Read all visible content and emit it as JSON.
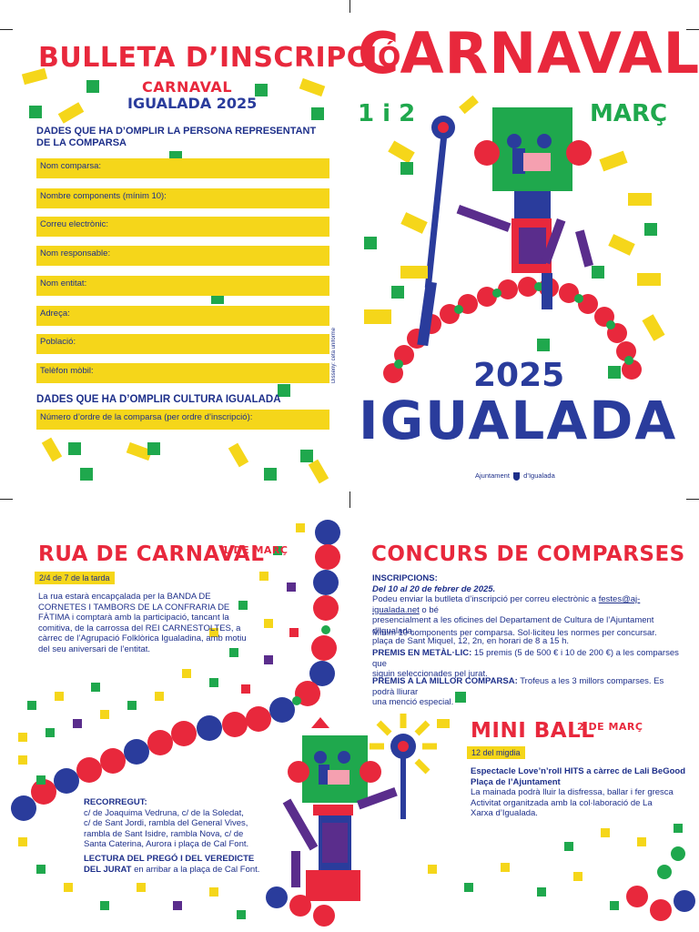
{
  "colors": {
    "red": "#e8283c",
    "blue": "#2a3c9c",
    "green": "#1fa84d",
    "yellow": "#f5d61a",
    "purple": "#5a2d8c"
  },
  "form": {
    "title": "BULLETA D’INSCRIPCIÓ",
    "event_line1": "CARNAVAL",
    "event_line2": "IGUALADA 2025",
    "section1": "DADES QUE HA D’OMPLIR LA PERSONA REPRESENTANT DE LA COMPARSA",
    "fields": [
      {
        "label": "Nom comparsa:",
        "note": ""
      },
      {
        "label": "Nombre components",
        "note": "(mínim 10):"
      },
      {
        "label": "Correu electrònic:",
        "note": ""
      },
      {
        "label": "Nom responsable:",
        "note": ""
      },
      {
        "label": "Nom entitat:",
        "note": ""
      },
      {
        "label": "Adreça:",
        "note": ""
      },
      {
        "label": "Població:",
        "note": ""
      },
      {
        "label": "Telèfon mòbil:",
        "note": ""
      }
    ],
    "section2": "DADES QUE HA D’OMPLIR CULTURA IGUALADA",
    "order_label": "Número d’ordre de la comparsa",
    "order_note": "(per ordre d’inscripció):",
    "credit": "Disseny: ceta uniforme"
  },
  "poster": {
    "title": "CARNAVAL",
    "dates_left": "1 i 2",
    "dates_right": "MARÇ",
    "year": "2025",
    "city": "IGUALADA",
    "footer_left": "Ajuntament",
    "footer_right": "d’Igualada"
  },
  "rua": {
    "title": "RUA DE CARNAVAL",
    "date": "1 DE MARÇ",
    "time": "2/4 de 7 de la tarda",
    "p1": "La rua estarà encapçalada per la BANDA DE CORNETES I TAMBORS DE LA CONFRARIA DE FÀTIMA i comptarà amb la participació, tancant la comitiva, de la carrossa del REI CARNESTOLTES, a càrrec de l’Agrupació Folklòrica Igualadina, amb motiu del seu aniversari de l’entitat.",
    "route_title": "RECORREGUT:",
    "route_lines": [
      "c/ de Joaquima Vedruna, c/ de la Soledat,",
      "c/ de Sant Jordi, rambla del General Vives,",
      "rambla de Sant Isidre, rambla Nova, c/ de",
      "Santa Caterina, Aurora i plaça de Cal Font."
    ],
    "pregó_bold1": "LECTURA DEL PREGÓ I DEL VEREDICTE",
    "pregó_bold2": "DEL JURAT",
    "pregó_rest": "en arribar a la plaça de Cal Font."
  },
  "concurs": {
    "title": "CONCURS DE COMPARSES",
    "insc_label": "INSCRIPCIONS:",
    "insc_dates": "Del 10 al 20 de febrer de 2025.",
    "insc_l1a": "Podeu enviar la butlleta d’inscripció per correu electrònic a ",
    "insc_email": "festes@aj-igualada.net",
    "insc_l1b": " o bé",
    "insc_l2": "presencialment a les oficines del Departament de Cultura de l’Ajuntament d’Igualada,",
    "insc_l3": "plaça de Sant Miquel, 12, 2n, en horari de 8 a 15 h.",
    "min": "Mínim 10 components per comparsa. Sol·liciteu les normes per concursar.",
    "premis_label": "PREMIS EN METÀL·LIC:",
    "premis_l1": " 15 premis (5 de 500 € i 10 de 200 €) a les comparses que",
    "premis_l2": "siguin seleccionades pel jurat.",
    "millor_label": "PREMIS A LA MILLOR COMPARSA:",
    "millor_l1": " Trofeus a les 3 millors comparses. Es podrà lliurar",
    "millor_l2": "una menció especial."
  },
  "miniball": {
    "title": "MINI BALL",
    "date": "2 DE MARÇ",
    "time": "12 del migdia",
    "l1": "Espectacle Love’n’roll HITS a càrrec de Lali BeGood",
    "l2": "Plaça de l’Ajuntament",
    "l3": "La mainada podrà lluir la disfressa, ballar i fer gresca",
    "l4": "Activitat organitzada amb la col·laboració de La",
    "l5": "Xarxa d’Igualada."
  }
}
